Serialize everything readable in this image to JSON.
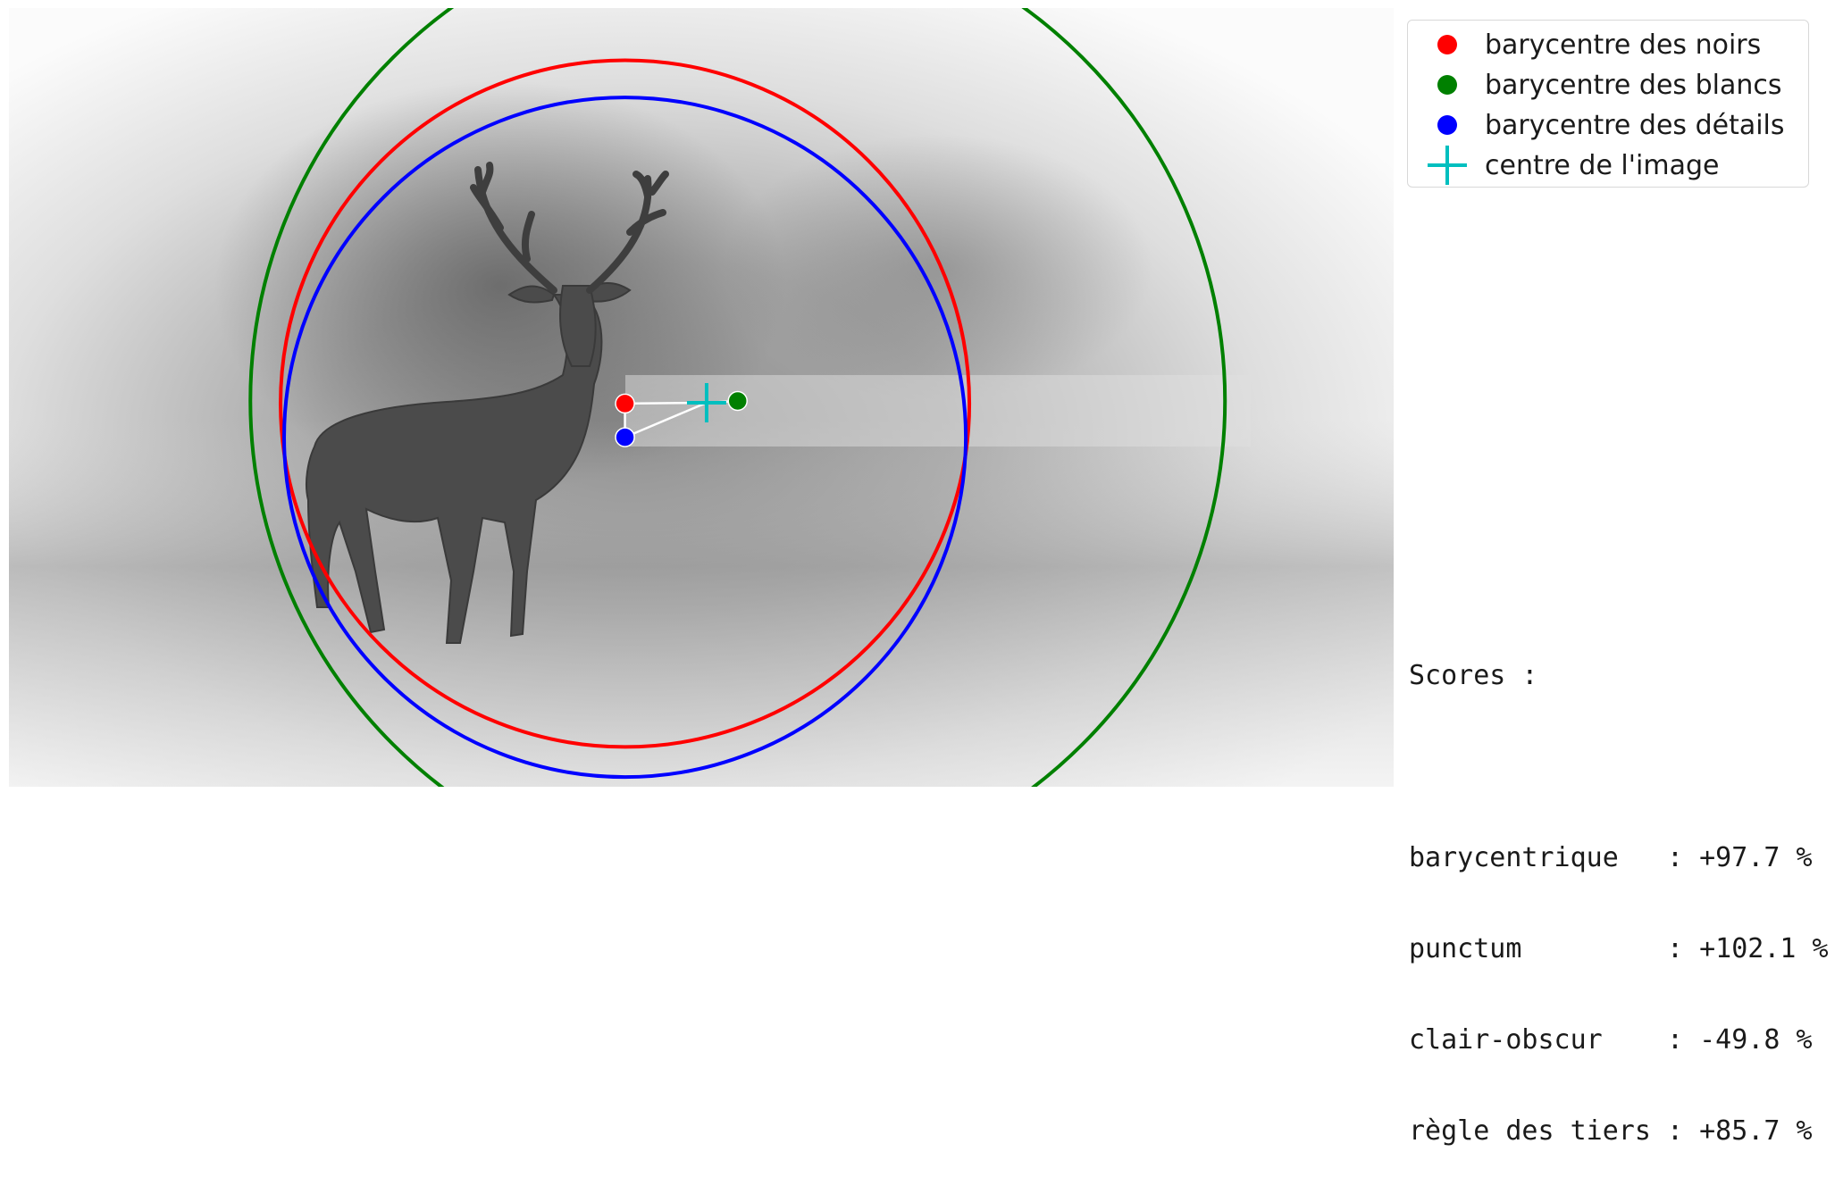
{
  "chart_data": {
    "type": "scatter",
    "image_size": [
      1560,
      880
    ],
    "photo_description_hidden": true,
    "points": [
      {
        "name": "barycentre des noirs",
        "x": 694,
        "y": 447,
        "color": "#ff0000"
      },
      {
        "name": "barycentre des blancs",
        "x": 821,
        "y": 444,
        "color": "#008000"
      },
      {
        "name": "barycentre des détails",
        "x": 694,
        "y": 485,
        "color": "#0000ff"
      },
      {
        "name": "centre de l'image",
        "x": 786,
        "y": 446,
        "color": "#00bfbf"
      }
    ],
    "circles": [
      {
        "series": "barycentre des noirs",
        "cx": 694,
        "cy": 447,
        "r": 388,
        "color": "#ff0000"
      },
      {
        "series": "barycentre des blancs",
        "cx": 821,
        "cy": 444,
        "r": 549,
        "color": "#008000"
      },
      {
        "series": "barycentre des détails",
        "cx": 694,
        "cy": 485,
        "r": 384,
        "color": "#0000ff"
      }
    ],
    "legend": [
      {
        "label": "barycentre des noirs",
        "marker": "dot",
        "color": "#ff0000"
      },
      {
        "label": "barycentre des blancs",
        "marker": "dot",
        "color": "#008000"
      },
      {
        "label": "barycentre des détails",
        "marker": "dot",
        "color": "#0000ff"
      },
      {
        "label": "centre de l'image",
        "marker": "cross",
        "color": "#00bfbf"
      }
    ],
    "legend_position": "top-right, outside image"
  },
  "scores": {
    "title": "Scores :",
    "rows": [
      {
        "label": "barycentrique  ",
        "value": ": +97.7 %"
      },
      {
        "label": "punctum        ",
        "value": ": +102.1 %"
      },
      {
        "label": "clair-obscur   ",
        "value": ": -49.8 %"
      },
      {
        "label": "règle des tiers",
        "value": ": +85.7 %"
      }
    ]
  }
}
